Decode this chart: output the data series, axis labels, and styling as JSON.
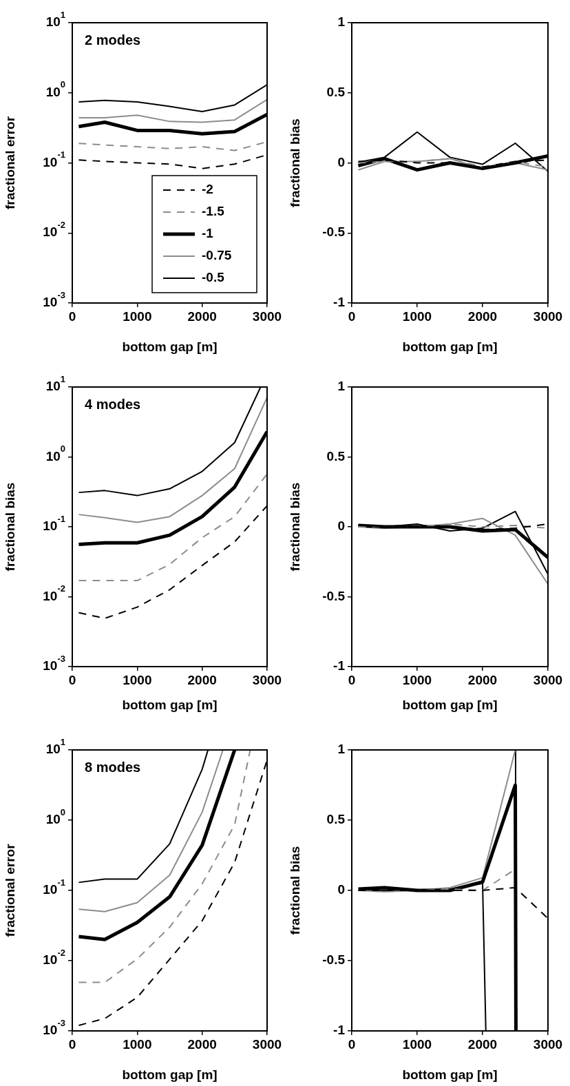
{
  "chart_data": [
    {
      "type": "line",
      "annotations": [
        "2 modes"
      ],
      "xlabel": "bottom gap [m]",
      "ylabel": "fractional error",
      "log": true,
      "legend": "bottom right",
      "marker": "none",
      "xlim": [
        0,
        3000
      ],
      "xticks": [
        0,
        1000,
        2000,
        3000
      ],
      "ylim": [
        0.001,
        10
      ],
      "yticks": [
        {
          "value": 0.001,
          "label": "10$^{-3}$"
        },
        {
          "value": 0.01,
          "label": "10$^{-2}$"
        },
        {
          "value": 0.1,
          "label": "10$^{-1}$"
        },
        {
          "value": 1,
          "label": "10$^{0}$"
        },
        {
          "value": 10,
          "label": "10$^{1}$"
        }
      ],
      "x": [
        100,
        500,
        1000,
        1500,
        2000,
        2500,
        3000
      ],
      "series": [
        {
          "name": "-2",
          "color": "#000000",
          "line_style": "dashed",
          "values": [
            0.11,
            0.105,
            0.1,
            0.096,
            0.083,
            0.096,
            0.13
          ]
        },
        {
          "name": "-1.5",
          "color": "#8c8c8c",
          "line_style": "dashed",
          "values": [
            0.19,
            0.18,
            0.17,
            0.16,
            0.17,
            0.15,
            0.2
          ]
        },
        {
          "name": "-1",
          "color": "#000000",
          "values": [
            0.33,
            0.38,
            0.29,
            0.29,
            0.26,
            0.28,
            0.49
          ]
        },
        {
          "name": "-0.75",
          "color": "#8c8c8c",
          "values": [
            0.44,
            0.44,
            0.48,
            0.39,
            0.38,
            0.41,
            0.8
          ]
        },
        {
          "name": "-0.5",
          "color": "#000000",
          "values": [
            0.74,
            0.78,
            0.74,
            0.64,
            0.54,
            0.67,
            1.3
          ]
        }
      ]
    },
    {
      "type": "line",
      "xlabel": "bottom gap [m]",
      "ylabel": "fractional bias",
      "marker": "none",
      "xlim": [
        0,
        3000
      ],
      "xticks": [
        0,
        1000,
        2000,
        3000
      ],
      "ylim": [
        -1,
        1
      ],
      "yticks": [
        -1,
        -0.5,
        0,
        0.5,
        1
      ],
      "x": [
        100,
        500,
        1000,
        1500,
        2000,
        2500,
        3000
      ],
      "series": [
        {
          "color": "#000000",
          "line_style": "dashed",
          "values": [
            0.01,
            0.02,
            0,
            0,
            -0.03,
            0.01,
            0.02
          ]
        },
        {
          "color": "#8c8c8c",
          "line_style": "dashed",
          "values": [
            0,
            0.01,
            0.01,
            0.03,
            -0.03,
            0.01,
            -0.03
          ]
        },
        {
          "color": "#000000",
          "values": [
            -0.02,
            0.03,
            -0.05,
            0,
            -0.04,
            0,
            0.05
          ]
        },
        {
          "color": "#8c8c8c",
          "values": [
            -0.05,
            0.01,
            0.01,
            0.03,
            -0.04,
            0,
            -0.05
          ]
        },
        {
          "color": "#000000",
          "values": [
            0.005,
            0.04,
            0.22,
            0.04,
            -0.01,
            0.14,
            -0.06
          ]
        }
      ]
    },
    {
      "type": "line",
      "annotations": [
        "4 modes"
      ],
      "xlabel": "bottom gap [m]",
      "ylabel": "fractional bias",
      "log": true,
      "marker": "none",
      "xlim": [
        0,
        3000
      ],
      "xticks": [
        0,
        1000,
        2000,
        3000
      ],
      "ylim": [
        0.001,
        10
      ],
      "yticks": [
        {
          "value": 0.001,
          "label": "10$^{-3}$"
        },
        {
          "value": 0.01,
          "label": "10$^{-2}$"
        },
        {
          "value": 0.1,
          "label": "10$^{-1}$"
        },
        {
          "value": 1,
          "label": "10$^{0}$"
        },
        {
          "value": 10,
          "label": "10$^{1}$"
        }
      ],
      "x": [
        100,
        500,
        1000,
        1500,
        2000,
        2500,
        3000
      ],
      "series": [
        {
          "color": "#000000",
          "line_style": "dashed",
          "values": [
            0.0059,
            0.0049,
            0.0071,
            0.0126,
            0.028,
            0.061,
            0.2
          ]
        },
        {
          "color": "#8c8c8c",
          "line_style": "dashed",
          "values": [
            0.017,
            0.017,
            0.017,
            0.029,
            0.07,
            0.14,
            0.57
          ]
        },
        {
          "color": "#000000",
          "values": [
            0.056,
            0.059,
            0.059,
            0.076,
            0.14,
            0.37,
            2.3
          ]
        },
        {
          "color": "#8c8c8c",
          "values": [
            0.15,
            0.135,
            0.116,
            0.14,
            0.28,
            0.68,
            7.1
          ]
        },
        {
          "color": "#000000",
          "x": [
            100,
            500,
            1000,
            1500,
            2000,
            2500,
            2900
          ],
          "values": [
            0.31,
            0.33,
            0.28,
            0.35,
            0.62,
            1.6,
            10
          ]
        }
      ]
    },
    {
      "type": "line",
      "xlabel": "bottom gap [m]",
      "ylabel": "fractional bias",
      "marker": "none",
      "xlim": [
        0,
        3000
      ],
      "xticks": [
        0,
        1000,
        2000,
        3000
      ],
      "ylim": [
        -1,
        1
      ],
      "yticks": [
        -1,
        -0.5,
        0,
        0.5,
        1
      ],
      "x": [
        100,
        500,
        1000,
        1500,
        2000,
        2500,
        3000
      ],
      "series": [
        {
          "color": "#000000",
          "line_style": "dashed",
          "values": [
            0.01,
            0,
            0,
            0,
            -0.02,
            -0.01,
            0.02
          ]
        },
        {
          "color": "#8c8c8c",
          "line_style": "dashed",
          "values": [
            0,
            0,
            0,
            0.02,
            0,
            0.01,
            -0.01
          ]
        },
        {
          "color": "#000000",
          "values": [
            0.01,
            0,
            0,
            0,
            -0.03,
            -0.02,
            -0.22
          ]
        },
        {
          "color": "#8c8c8c",
          "values": [
            0,
            -0.01,
            0,
            0.02,
            0.06,
            -0.06,
            -0.41
          ]
        },
        {
          "color": "#000000",
          "values": [
            0.015,
            0,
            0.02,
            -0.03,
            -0.01,
            0.11,
            -0.34
          ]
        }
      ]
    },
    {
      "type": "line",
      "annotations": [
        "8 modes"
      ],
      "xlabel": "bottom gap [m]",
      "ylabel": "fractional error",
      "log": true,
      "marker": "none",
      "xlim": [
        0,
        3000
      ],
      "xticks": [
        0,
        1000,
        2000,
        3000
      ],
      "ylim": [
        0.001,
        10
      ],
      "yticks": [
        {
          "value": 0.001,
          "label": "10$^{-3}$"
        },
        {
          "value": 0.01,
          "label": "10$^{-2}$"
        },
        {
          "value": 0.1,
          "label": "10$^{-1}$"
        },
        {
          "value": 1,
          "label": "10$^{0}$"
        },
        {
          "value": 10,
          "label": "10$^{1}$"
        }
      ],
      "x": [
        100,
        500,
        1000,
        1500,
        2000,
        2500,
        3000
      ],
      "series": [
        {
          "color": "#000000",
          "line_style": "dashed",
          "values": [
            0.0012,
            0.0015,
            0.003,
            0.0105,
            0.037,
            0.25,
            7.2
          ]
        },
        {
          "color": "#8c8c8c",
          "line_style": "dashed",
          "x": [
            100,
            500,
            1000,
            1500,
            2000,
            2500,
            2740
          ],
          "values": [
            0.0049,
            0.0049,
            0.0106,
            0.03,
            0.124,
            0.86,
            10
          ]
        },
        {
          "color": "#000000",
          "x": [
            100,
            500,
            1000,
            1500,
            2000,
            2500
          ],
          "values": [
            0.022,
            0.02,
            0.035,
            0.081,
            0.44,
            10
          ]
        },
        {
          "color": "#8c8c8c",
          "x": [
            100,
            500,
            1000,
            1500,
            2000,
            2320
          ],
          "values": [
            0.054,
            0.05,
            0.067,
            0.165,
            1.3,
            10
          ]
        },
        {
          "color": "#000000",
          "x": [
            100,
            500,
            1000,
            1500,
            2000,
            2090
          ],
          "values": [
            0.13,
            0.145,
            0.145,
            0.46,
            5.3,
            10
          ]
        }
      ]
    },
    {
      "type": "line",
      "xlabel": "bottom gap [m]",
      "ylabel": "fractional bias",
      "marker": "none",
      "xlim": [
        0,
        3000
      ],
      "xticks": [
        0,
        1000,
        2000,
        3000
      ],
      "ylim": [
        -1,
        1
      ],
      "yticks": [
        -1,
        -0.5,
        0,
        0.5,
        1
      ],
      "x": [
        100,
        500,
        1000,
        1500,
        2000,
        2500,
        3000
      ],
      "series": [
        {
          "color": "#000000",
          "line_style": "dashed",
          "values": [
            0,
            0,
            0,
            0,
            0,
            0.02,
            -0.2
          ]
        },
        {
          "color": "#8c8c8c",
          "line_style": "dashed",
          "x": [
            100,
            500,
            1000,
            1500,
            2000,
            2500
          ],
          "values": [
            0,
            0,
            0,
            0.01,
            0,
            0.15
          ]
        },
        {
          "color": "#000000",
          "x": [
            100,
            500,
            1000,
            1500,
            2000,
            2500,
            2510
          ],
          "values": [
            0.01,
            0.02,
            0,
            0,
            0.06,
            0.75,
            -1
          ]
        },
        {
          "color": "#8c8c8c",
          "x": [
            100,
            500,
            1000,
            1500,
            2000,
            2500
          ],
          "values": [
            0,
            -0.01,
            0,
            0.02,
            0.09,
            1
          ]
        },
        {
          "color": "#000000",
          "x": [
            100,
            500,
            1000,
            1500,
            2000,
            2050,
            2250,
            2500,
            2505
          ],
          "values": [
            0,
            0,
            0,
            0.01,
            0.05,
            -1,
            null,
            -1,
            1
          ]
        }
      ]
    }
  ]
}
